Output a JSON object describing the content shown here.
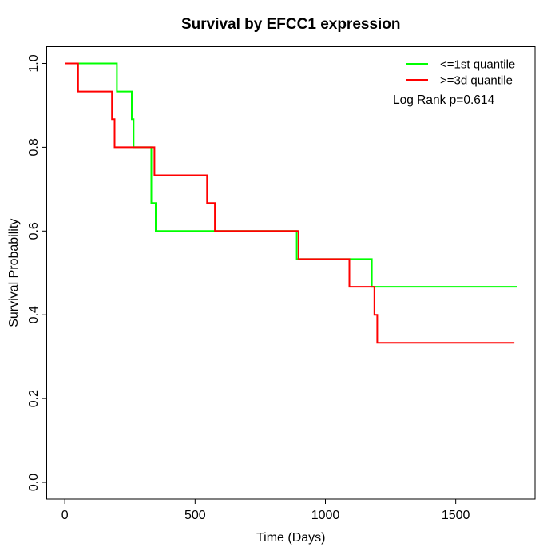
{
  "page": {
    "background": "#ffffff",
    "axis_color": "#000000",
    "text_color": "#000000"
  },
  "chart_data": {
    "type": "line",
    "subtype": "kaplan-meier-step",
    "title": "Survival by EFCC1 expression",
    "xlabel": "Time (Days)",
    "ylabel": "Survival Probability",
    "xlim": [
      0,
      1735
    ],
    "ylim": [
      0,
      1
    ],
    "xticks": [
      0,
      500,
      1000,
      1500
    ],
    "yticks": [
      0.0,
      0.2,
      0.4,
      0.6,
      0.8,
      1.0
    ],
    "grid": false,
    "box": true,
    "legend_position": "topright",
    "legend": [
      {
        "id": "low-expression",
        "label": "<=1st quantile",
        "color": "#00FF00"
      },
      {
        "id": "high-expression",
        "label": ">=3d quantile",
        "color": "#FF0000"
      }
    ],
    "annotation": "Log Rank p=0.614",
    "series": [
      {
        "id": "low-expression",
        "name": "<=1st quantile",
        "color": "#00FF00",
        "points": [
          [
            0,
            1.0
          ],
          [
            200,
            0.933
          ],
          [
            257,
            0.867
          ],
          [
            264,
            0.8
          ],
          [
            332,
            0.667
          ],
          [
            349,
            0.6
          ],
          [
            890,
            0.533
          ],
          [
            1178,
            0.467
          ],
          [
            1735,
            0.467
          ]
        ]
      },
      {
        "id": "high-expression",
        "name": ">=3d quantile",
        "color": "#FF0000",
        "points": [
          [
            0,
            1.0
          ],
          [
            51,
            0.933
          ],
          [
            181,
            0.867
          ],
          [
            191,
            0.8
          ],
          [
            344,
            0.733
          ],
          [
            546,
            0.667
          ],
          [
            576,
            0.6
          ],
          [
            897,
            0.533
          ],
          [
            1092,
            0.467
          ],
          [
            1188,
            0.4
          ],
          [
            1199,
            0.333
          ],
          [
            1725,
            0.333
          ]
        ]
      }
    ]
  }
}
